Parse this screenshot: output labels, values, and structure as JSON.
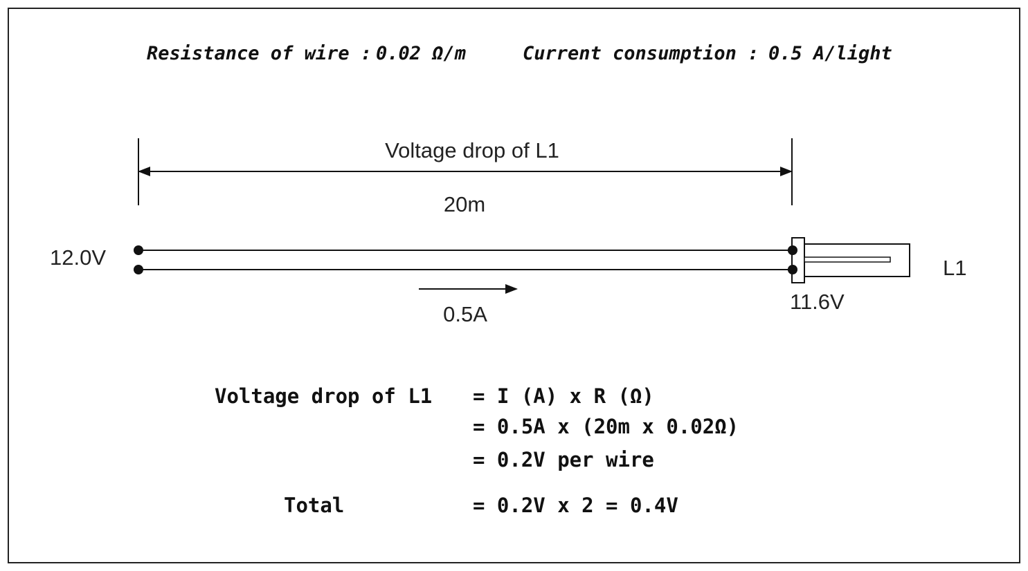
{
  "header": {
    "resistance_label": "Resistance of wire :",
    "resistance_value": "0.02 Ω/m",
    "current_label": "Current consumption :",
    "current_value": "0.5 A/light"
  },
  "diagram": {
    "dimension_title": "Voltage drop of L1",
    "length": "20m",
    "source_voltage": "12.0V",
    "current": "0.5A",
    "load_voltage": "11.6V",
    "load_label": "L1"
  },
  "calculation": {
    "title": "Voltage drop of L1",
    "line1": "= I (A) x R (Ω)",
    "line2": "= 0.5A x (20m x 0.02Ω)",
    "line3": "= 0.2V per wire",
    "total_label": "Total",
    "total_value": "= 0.2V x 2 = 0.4V"
  }
}
